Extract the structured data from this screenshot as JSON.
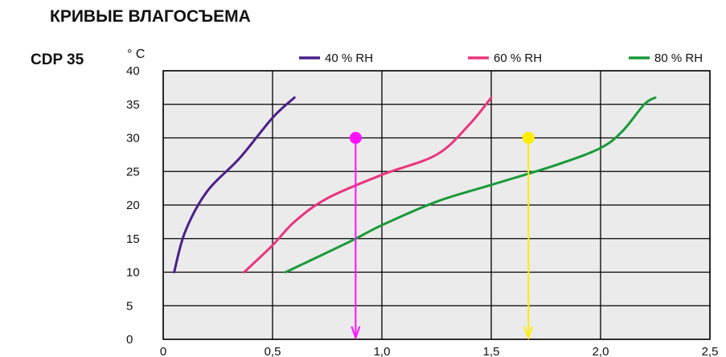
{
  "chart_data": {
    "type": "line",
    "title": "КРИВЫЕ ВЛАГОСЪЕМА",
    "model": "CDP 35",
    "y_unit_label": "° C",
    "xlim": [
      0,
      2.5
    ],
    "ylim": [
      0,
      40
    ],
    "x_ticks": [
      0,
      0.5,
      1.0,
      1.5,
      2.0,
      2.5
    ],
    "x_tick_labels": [
      "0",
      "0,5",
      "1,0",
      "1,5",
      "2,0",
      "2,5"
    ],
    "y_ticks": [
      0,
      5,
      10,
      15,
      20,
      25,
      30,
      35,
      40
    ],
    "y_tick_labels": [
      "0",
      "5",
      "10",
      "15",
      "20",
      "25",
      "30",
      "35",
      "40"
    ],
    "grid": true,
    "legend_position": "top",
    "series": [
      {
        "name": "40 % RH",
        "color": "#4b1f8a",
        "points": [
          [
            0.05,
            10
          ],
          [
            0.1,
            16
          ],
          [
            0.2,
            22
          ],
          [
            0.35,
            27
          ],
          [
            0.5,
            33
          ],
          [
            0.6,
            36
          ]
        ]
      },
      {
        "name": "60 % RH",
        "color": "#e8367c",
        "points": [
          [
            0.37,
            10
          ],
          [
            0.5,
            14
          ],
          [
            0.6,
            17.5
          ],
          [
            0.75,
            21
          ],
          [
            1.0,
            24.5
          ],
          [
            1.25,
            27.5
          ],
          [
            1.4,
            32
          ],
          [
            1.5,
            36
          ]
        ]
      },
      {
        "name": "80 % RH",
        "color": "#1a9a3a",
        "points": [
          [
            0.56,
            10
          ],
          [
            0.85,
            14.5
          ],
          [
            1.0,
            17
          ],
          [
            1.25,
            20.5
          ],
          [
            1.5,
            23
          ],
          [
            1.8,
            26
          ],
          [
            2.0,
            28.5
          ],
          [
            2.1,
            31
          ],
          [
            2.2,
            35
          ],
          [
            2.25,
            36
          ]
        ]
      }
    ],
    "markers": [
      {
        "x": 0.88,
        "y": 30,
        "color": "#ff10ff",
        "arrow_to_y": 0
      },
      {
        "x": 1.67,
        "y": 30,
        "color": "#ffee00",
        "arrow_to_y": 0
      }
    ],
    "plot_background": "#ebebeb"
  }
}
